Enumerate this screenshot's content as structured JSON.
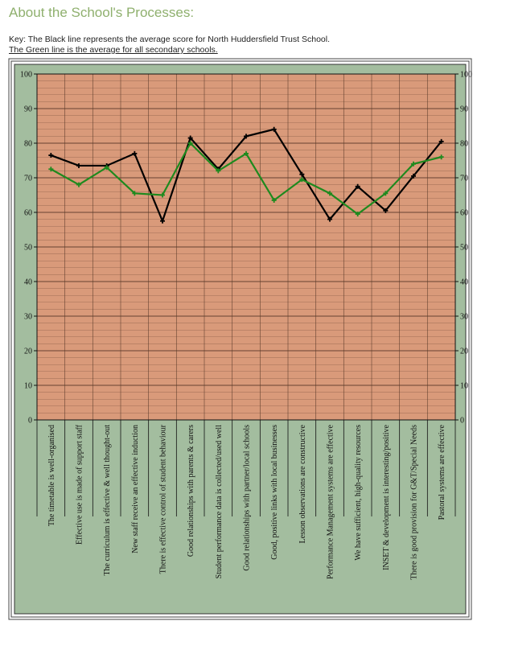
{
  "header": {
    "title": "About the School's Processes:",
    "key_line1": "Key: The Black line represents the average score for North Huddersfield Trust School.",
    "key_line2": "The Green line is the average for all secondary schools."
  },
  "colors": {
    "plot_bg": "#d99a7a",
    "frame_bg": "#a3bd9f",
    "black_line": "#000000",
    "green_line": "#1e8a1e",
    "grid": "#5a3a2a"
  },
  "chart_data": {
    "type": "line",
    "categories": [
      "The timetable is well-organised",
      "Effective use is made of support staff",
      "The curriculum is effective & well thought-out",
      "New staff receive an effective induction",
      "There is effective control of student behaviour",
      "Good relationships with parents & carers",
      "Student performance data is collected/used well",
      "Good relationships with partner/local schools",
      "Good, positive links with local businesses",
      "Lesson observations are constructive",
      "Performance Management systems are effective",
      "We have sufficient, high-quality resources",
      "INSET & development is interesting/positive",
      "There is good provision for G&T/Special Needs",
      "Pastoral systems are effective"
    ],
    "series": [
      {
        "color": "#000000",
        "values": [
          76.5,
          73.5,
          73.5,
          77,
          57.5,
          81.5,
          72.5,
          82,
          84,
          71,
          58,
          67.5,
          60.5,
          70.5,
          80.5
        ]
      },
      {
        "color": "#1e8a1e",
        "values": [
          72.5,
          68,
          73,
          65.5,
          65,
          80,
          72,
          77,
          63.5,
          69.5,
          65.5,
          59.5,
          65.5,
          74,
          76
        ]
      }
    ],
    "ylim": [
      0,
      100
    ],
    "yticks": [
      0,
      10,
      20,
      30,
      40,
      50,
      60,
      70,
      80,
      90,
      100
    ],
    "grid": true,
    "minor_grid_step": 2
  }
}
